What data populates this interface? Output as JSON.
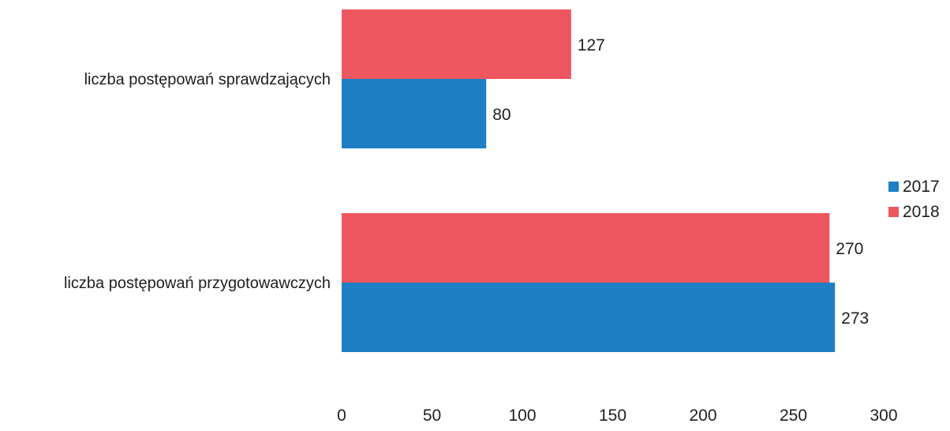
{
  "chart_data": {
    "type": "bar",
    "orientation": "horizontal",
    "categories": [
      "liczba postępowań sprawdzających",
      "liczba postępowań przygotowawczych"
    ],
    "series": [
      {
        "name": "2017",
        "values": [
          80,
          273
        ],
        "color": "#1e7fc4"
      },
      {
        "name": "2018",
        "values": [
          127,
          270
        ],
        "color": "#ee5660"
      }
    ],
    "xlim": [
      0,
      300
    ],
    "xticks": [
      0,
      50,
      100,
      150,
      200,
      250,
      300
    ],
    "grid": false,
    "legend_position": "right"
  }
}
